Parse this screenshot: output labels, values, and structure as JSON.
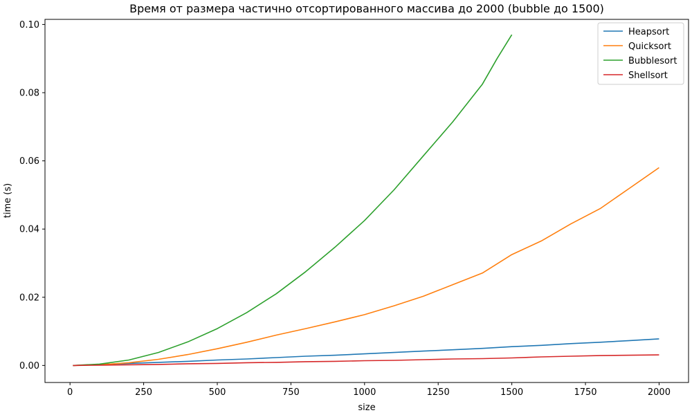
{
  "chart_data": {
    "type": "line",
    "title": "Время от размера частично отсортированного массива до 2000 (bubble до 1500)",
    "xlabel": "size",
    "ylabel": "time (s)",
    "xlim": [
      -85,
      2100
    ],
    "ylim": [
      -0.005,
      0.1015
    ],
    "xticks": [
      0,
      250,
      500,
      750,
      1000,
      1250,
      1500,
      1750,
      2000
    ],
    "xtick_labels": [
      "0",
      "250",
      "500",
      "750",
      "1000",
      "1250",
      "1500",
      "1750",
      "2000"
    ],
    "yticks": [
      0.0,
      0.02,
      0.04,
      0.06,
      0.08,
      0.1
    ],
    "ytick_labels": [
      "0.00",
      "0.02",
      "0.04",
      "0.06",
      "0.08",
      "0.10"
    ],
    "grid": false,
    "legend_position": "top-right",
    "series": [
      {
        "name": "Heapsort",
        "color": "#1f77b4",
        "x": [
          10,
          100,
          200,
          300,
          400,
          500,
          600,
          700,
          800,
          900,
          1000,
          1100,
          1200,
          1300,
          1400,
          1500,
          1600,
          1700,
          1800,
          1900,
          2000
        ],
        "values": [
          0.0,
          0.0003,
          0.0006,
          0.0009,
          0.0012,
          0.0016,
          0.0019,
          0.0023,
          0.0027,
          0.003,
          0.0034,
          0.0038,
          0.0042,
          0.0046,
          0.005,
          0.0055,
          0.0059,
          0.0064,
          0.0068,
          0.0073,
          0.0078
        ]
      },
      {
        "name": "Quicksort",
        "color": "#ff7f0e",
        "x": [
          10,
          100,
          200,
          300,
          400,
          500,
          600,
          700,
          800,
          900,
          1000,
          1100,
          1200,
          1300,
          1400,
          1500,
          1600,
          1700,
          1800,
          1900,
          2000
        ],
        "values": [
          0.0,
          0.0002,
          0.0008,
          0.0018,
          0.0032,
          0.0049,
          0.0068,
          0.0089,
          0.0108,
          0.0128,
          0.0149,
          0.0175,
          0.0203,
          0.0237,
          0.0271,
          0.0325,
          0.0365,
          0.0415,
          0.046,
          0.052,
          0.058
        ]
      },
      {
        "name": "Bubblesort",
        "color": "#2ca02c",
        "x": [
          10,
          100,
          200,
          300,
          400,
          500,
          600,
          700,
          800,
          900,
          1000,
          1100,
          1200,
          1300,
          1400,
          1450,
          1500
        ],
        "values": [
          0.0,
          0.0004,
          0.0016,
          0.0038,
          0.0069,
          0.0108,
          0.0155,
          0.021,
          0.0275,
          0.0347,
          0.0425,
          0.0515,
          0.0615,
          0.0715,
          0.0825,
          0.09,
          0.097
        ]
      },
      {
        "name": "Shellsort",
        "color": "#d62728",
        "x": [
          10,
          100,
          200,
          300,
          400,
          500,
          600,
          700,
          800,
          900,
          1000,
          1100,
          1200,
          1300,
          1400,
          1500,
          1600,
          1700,
          1800,
          1900,
          2000
        ],
        "values": [
          0.0,
          0.0001,
          0.0002,
          0.0003,
          0.0005,
          0.0006,
          0.0008,
          0.0009,
          0.0011,
          0.0012,
          0.0014,
          0.0015,
          0.0017,
          0.0019,
          0.002,
          0.0022,
          0.0025,
          0.0027,
          0.0029,
          0.003,
          0.0031
        ]
      }
    ]
  }
}
